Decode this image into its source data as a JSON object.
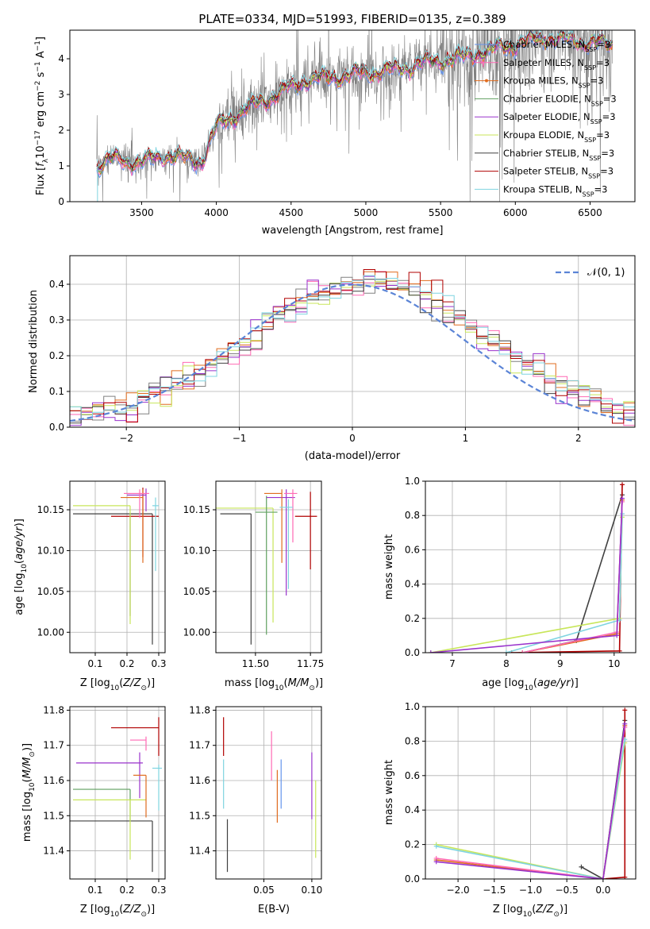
{
  "figure": {
    "title": "PLATE=0334, MJD=51993, FIBERID=0135, z=0.389"
  },
  "chart_data": [
    {
      "panel": "spectrum",
      "type": "line",
      "xlabel": "wavelength [Angstrom, rest frame]",
      "ylabel": "Flux [f_λ 10^-17 erg cm^-2 s^-1 A^-1]",
      "xlim": [
        3020,
        6800
      ],
      "ylim": [
        0,
        4.8
      ],
      "xticks": [
        "3500",
        "4000",
        "4500",
        "5000",
        "5500",
        "6000",
        "6500"
      ],
      "yticks": [
        "0",
        "1",
        "2",
        "3",
        "4"
      ],
      "grid": false,
      "legend_position": "right",
      "data_color": "#808080",
      "continuum_x": [
        3200,
        3300,
        3500,
        3650,
        3800,
        3900,
        4000,
        4200,
        4400,
        4600,
        4800,
        5000,
        5200,
        5400,
        5600,
        5800,
        6000,
        6200,
        6400,
        6600
      ],
      "continuum_y": [
        1.0,
        1.2,
        1.1,
        1.3,
        1.2,
        1.1,
        2.1,
        2.6,
        3.0,
        3.4,
        3.5,
        3.6,
        3.7,
        3.9,
        4.0,
        4.2,
        4.4,
        4.6,
        4.5,
        4.4
      ],
      "series": [
        {
          "name": "Chabrier MILES, N_SSP=3",
          "color": "#6495ED",
          "marker": "none"
        },
        {
          "name": "Salpeter MILES, N_SSP=3",
          "color": "#FF69B4",
          "marker": "none"
        },
        {
          "name": "Kroupa MILES, N_SSP=3",
          "color": "#E06C1F",
          "marker": "dot"
        },
        {
          "name": "Chabrier ELODIE, N_SSP=3",
          "color": "#5F9F5F",
          "marker": "none"
        },
        {
          "name": "Salpeter ELODIE, N_SSP=3",
          "color": "#9932CC",
          "marker": "none"
        },
        {
          "name": "Kroupa ELODIE, N_SSP=3",
          "color": "#C8E65A",
          "marker": "none"
        },
        {
          "name": "Chabrier STELIB, N_SSP=3",
          "color": "#404040",
          "marker": "none"
        },
        {
          "name": "Salpeter STELIB, N_SSP=3",
          "color": "#B00000",
          "marker": "none"
        },
        {
          "name": "Kroupa STELIB, N_SSP=3",
          "color": "#7FD4E0",
          "marker": "none"
        }
      ]
    },
    {
      "panel": "residuals",
      "type": "line",
      "xlabel": "(data-model)/error",
      "ylabel": "Normed distribution",
      "xlim": [
        -2.5,
        2.5
      ],
      "ylim": [
        0,
        0.48
      ],
      "xticks": [
        "−2",
        "−1",
        "0",
        "1",
        "2"
      ],
      "yticks": [
        "0.0",
        "0.1",
        "0.2",
        "0.3",
        "0.4"
      ],
      "grid": true,
      "legend": "𝒩(0, 1)",
      "legend_position": "top-right",
      "gaussian_color": "#5B84D6",
      "bin_edges_start": -2.5,
      "bin_width": 0.1,
      "hist_colors": [
        "#808080",
        "#FF69B4",
        "#E06C1F",
        "#9932CC",
        "#C8E65A",
        "#404040",
        "#B00000",
        "#7FD4E0"
      ]
    },
    {
      "panel": "Z-age",
      "type": "scatter",
      "xlabel": "Z [log10(Z/Z⊙)]",
      "ylabel": "age [log10(age/yr)]",
      "xlim": [
        0.02,
        0.32
      ],
      "ylim": [
        9.975,
        10.185
      ],
      "xticks": [
        "0.1",
        "0.2",
        "0.3"
      ],
      "yticks": [
        "10.00",
        "10.05",
        "10.10",
        "10.15"
      ],
      "grid": true,
      "points": [
        {
          "x": 0.21,
          "y": 10.145,
          "xerr": [
            0.18,
            0.0
          ],
          "yerr": [
            0.125,
            0.0
          ],
          "color": "#404040"
        },
        {
          "x": 0.28,
          "y": 10.145,
          "xerr": [
            0.07,
            0.0
          ],
          "yerr": [
            0.16,
            0.0
          ],
          "color": "#404040"
        },
        {
          "x": 0.25,
          "y": 10.142,
          "xerr": [
            0.1,
            0.05
          ],
          "yerr": [
            0.05,
            0.035
          ],
          "color": "#B00000"
        },
        {
          "x": 0.29,
          "y": 10.155,
          "xerr": [
            0.01,
            0.01
          ],
          "yerr": [
            0.08,
            0.01
          ],
          "color": "#7FD4E0"
        },
        {
          "x": 0.21,
          "y": 10.155,
          "xerr": [
            0.18,
            0.0
          ],
          "yerr": [
            0.145,
            0.0
          ],
          "color": "#C8E65A"
        },
        {
          "x": 0.25,
          "y": 10.165,
          "xerr": [
            0.07,
            0.0
          ],
          "yerr": [
            0.08,
            0.01
          ],
          "color": "#E06C1F"
        },
        {
          "x": 0.26,
          "y": 10.168,
          "xerr": [
            0.06,
            0.0
          ],
          "yerr": [
            0.02,
            0.008
          ],
          "color": "#9932CC"
        },
        {
          "x": 0.24,
          "y": 10.17,
          "xerr": [
            0.05,
            0.03
          ],
          "yerr": [
            0.03,
            0.005
          ],
          "color": "#FF69B4"
        }
      ]
    },
    {
      "panel": "mass-age",
      "type": "scatter",
      "xlabel": "mass [log10(M/M⊙)]",
      "ylabel": "",
      "xlim": [
        11.32,
        11.8
      ],
      "ylim": [
        9.975,
        10.185
      ],
      "xticks": [
        "11.50",
        "11.75"
      ],
      "yticks": [
        "10.00",
        "10.05",
        "10.10",
        "10.15"
      ],
      "grid": true,
      "points": [
        {
          "x": 11.48,
          "y": 10.145,
          "xerr": [
            0.14,
            0.0
          ],
          "yerr": [
            0.16,
            0.0
          ],
          "color": "#404040"
        },
        {
          "x": 11.75,
          "y": 10.142,
          "xerr": [
            0.07,
            0.03
          ],
          "yerr": [
            0.065,
            0.03
          ],
          "color": "#B00000"
        },
        {
          "x": 11.58,
          "y": 10.152,
          "xerr": [
            0.26,
            0.0
          ],
          "yerr": [
            0.14,
            0.0
          ],
          "color": "#C8E65A"
        },
        {
          "x": 11.55,
          "y": 10.147,
          "xerr": [
            0.05,
            0.05
          ],
          "yerr": [
            0.15,
            0.02
          ],
          "color": "#5F9F5F"
        },
        {
          "x": 11.64,
          "y": 10.165,
          "xerr": [
            0.09,
            0.04
          ],
          "yerr": [
            0.12,
            0.01
          ],
          "color": "#9932CC"
        },
        {
          "x": 11.62,
          "y": 10.17,
          "xerr": [
            0.08,
            0.0
          ],
          "yerr": [
            0.085,
            0.005
          ],
          "color": "#E06C1F"
        },
        {
          "x": 11.67,
          "y": 10.17,
          "xerr": [
            0.04,
            0.02
          ],
          "yerr": [
            0.06,
            0.005
          ],
          "color": "#FF69B4"
        },
        {
          "x": 11.65,
          "y": 10.153,
          "xerr": [
            0.04,
            0.02
          ],
          "yerr": [
            0.1,
            0.01
          ],
          "color": "#7FD4E0"
        }
      ]
    },
    {
      "panel": "age-weight",
      "type": "line",
      "xlabel": "age [log10(age/yr)]",
      "ylabel": "mass weight",
      "xlim": [
        6.5,
        10.4
      ],
      "ylim": [
        0,
        1.0
      ],
      "xticks": [
        "7",
        "8",
        "9",
        "10"
      ],
      "yticks": [
        "0.0",
        "0.2",
        "0.4",
        "0.6",
        "0.8",
        "1.0"
      ],
      "grid": true,
      "series": [
        {
          "color": "#404040",
          "x": [
            8.3,
            9.3,
            10.15
          ],
          "y": [
            0.0,
            0.07,
            0.92
          ]
        },
        {
          "color": "#B00000",
          "x": [
            8.1,
            10.1,
            10.15
          ],
          "y": [
            0.0,
            0.01,
            0.98
          ]
        },
        {
          "color": "#C8E65A",
          "x": [
            6.6,
            10.1,
            10.15
          ],
          "y": [
            0.0,
            0.2,
            0.79
          ]
        },
        {
          "color": "#7FD4E0",
          "x": [
            8.0,
            10.1,
            10.15
          ],
          "y": [
            0.0,
            0.19,
            0.81
          ]
        },
        {
          "color": "#E06C1F",
          "x": [
            8.3,
            10.05,
            10.15
          ],
          "y": [
            0.0,
            0.11,
            0.89
          ]
        },
        {
          "color": "#FF69B4",
          "x": [
            8.3,
            10.05,
            10.15
          ],
          "y": [
            0.0,
            0.12,
            0.88
          ]
        },
        {
          "color": "#9932CC",
          "x": [
            6.6,
            10.05,
            10.15
          ],
          "y": [
            0.0,
            0.1,
            0.9
          ]
        }
      ]
    },
    {
      "panel": "Z-mass",
      "type": "scatter",
      "xlabel": "Z [log10(Z/Z⊙)]",
      "ylabel": "mass [log10(M/M⊙)]",
      "xlim": [
        0.02,
        0.32
      ],
      "ylim": [
        11.32,
        11.81
      ],
      "xticks": [
        "0.1",
        "0.2",
        "0.3"
      ],
      "yticks": [
        "11.4",
        "11.5",
        "11.6",
        "11.7",
        "11.8"
      ],
      "grid": true,
      "points": [
        {
          "x": 0.28,
          "y": 11.485,
          "xerr": [
            0.26,
            0.0
          ],
          "yerr": [
            0.145,
            0.0
          ],
          "color": "#404040"
        },
        {
          "x": 0.3,
          "y": 11.75,
          "xerr": [
            0.15,
            0.0
          ],
          "yerr": [
            0.08,
            0.03
          ],
          "color": "#B00000"
        },
        {
          "x": 0.21,
          "y": 11.575,
          "xerr": [
            0.18,
            0.0
          ],
          "yerr": [
            0.09,
            0.0
          ],
          "color": "#5F9F5F"
        },
        {
          "x": 0.21,
          "y": 11.545,
          "xerr": [
            0.18,
            0.05
          ],
          "yerr": [
            0.17,
            0.0
          ],
          "color": "#C8E65A"
        },
        {
          "x": 0.24,
          "y": 11.65,
          "xerr": [
            0.2,
            0.01
          ],
          "yerr": [
            0.1,
            0.03
          ],
          "color": "#9932CC"
        },
        {
          "x": 0.26,
          "y": 11.615,
          "xerr": [
            0.04,
            0.0
          ],
          "yerr": [
            0.12,
            0.0
          ],
          "color": "#E06C1F"
        },
        {
          "x": 0.26,
          "y": 11.715,
          "xerr": [
            0.05,
            0.0
          ],
          "yerr": [
            0.03,
            0.01
          ],
          "color": "#FF69B4"
        },
        {
          "x": 0.3,
          "y": 11.635,
          "xerr": [
            0.02,
            0.01
          ],
          "yerr": [
            0.12,
            0.01
          ],
          "color": "#7FD4E0"
        }
      ]
    },
    {
      "panel": "EBV-mass",
      "type": "scatter",
      "xlabel": "E(B-V)",
      "ylabel": "",
      "xlim": [
        0.0,
        0.11
      ],
      "ylim": [
        11.32,
        11.81
      ],
      "xticks": [
        "0.05",
        "0.10"
      ],
      "yticks": [
        "11.4",
        "11.5",
        "11.6",
        "11.7",
        "11.8"
      ],
      "grid": true,
      "vlines": [
        {
          "x": 0.008,
          "y": [
            11.67,
            11.78
          ],
          "color": "#B00000"
        },
        {
          "x": 0.008,
          "y": [
            11.52,
            11.66
          ],
          "color": "#7FD4E0"
        },
        {
          "x": 0.012,
          "y": [
            11.34,
            11.49
          ],
          "color": "#404040"
        },
        {
          "x": 0.058,
          "y": [
            11.6,
            11.74
          ],
          "color": "#FF69B4"
        },
        {
          "x": 0.064,
          "y": [
            11.48,
            11.63
          ],
          "color": "#E06C1F"
        },
        {
          "x": 0.068,
          "y": [
            11.52,
            11.66
          ],
          "color": "#6495ED"
        },
        {
          "x": 0.1,
          "y": [
            11.49,
            11.68
          ],
          "color": "#9932CC"
        },
        {
          "x": 0.104,
          "y": [
            11.38,
            11.6
          ],
          "color": "#C8E65A"
        }
      ]
    },
    {
      "panel": "Z-weight",
      "type": "line",
      "xlabel": "Z [log10(Z/Z⊙)]",
      "ylabel": "mass weight",
      "xlim": [
        -2.45,
        0.45
      ],
      "ylim": [
        0,
        1.0
      ],
      "xticks": [
        "−2.0",
        "−1.5",
        "−1.0",
        "−0.5",
        "0.0"
      ],
      "yticks": [
        "0.0",
        "0.2",
        "0.4",
        "0.6",
        "0.8",
        "1.0"
      ],
      "grid": true,
      "series": [
        {
          "color": "#404040",
          "x": [
            -0.3,
            0.0,
            0.3
          ],
          "y": [
            0.07,
            0.0,
            0.92
          ]
        },
        {
          "color": "#B00000",
          "x": [
            0.0,
            0.3,
            0.3
          ],
          "y": [
            0.0,
            0.01,
            0.98
          ]
        },
        {
          "color": "#C8E65A",
          "x": [
            -2.3,
            0.0,
            0.3
          ],
          "y": [
            0.2,
            0.0,
            0.79
          ]
        },
        {
          "color": "#7FD4E0",
          "x": [
            -2.3,
            0.0,
            0.3
          ],
          "y": [
            0.19,
            0.0,
            0.81
          ]
        },
        {
          "color": "#E06C1F",
          "x": [
            -2.3,
            0.0,
            0.3
          ],
          "y": [
            0.11,
            0.0,
            0.89
          ]
        },
        {
          "color": "#FF69B4",
          "x": [
            -2.3,
            0.0,
            0.3
          ],
          "y": [
            0.12,
            0.0,
            0.88
          ]
        },
        {
          "color": "#9932CC",
          "x": [
            -2.3,
            0.0,
            0.3
          ],
          "y": [
            0.1,
            0.0,
            0.9
          ]
        }
      ]
    }
  ]
}
